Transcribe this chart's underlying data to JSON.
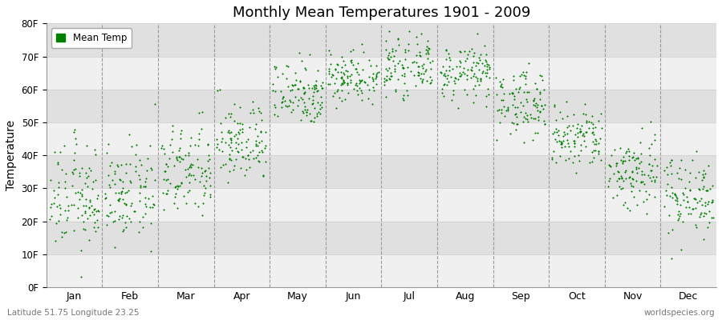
{
  "title": "Monthly Mean Temperatures 1901 - 2009",
  "ylabel": "Temperature",
  "xlabel_bottom_left": "Latitude 51.75 Longitude 23.25",
  "xlabel_bottom_right": "worldspecies.org",
  "legend_label": "Mean Temp",
  "dot_color": "#008000",
  "background_color": "#ffffff",
  "plot_bg_color": "#ffffff",
  "band_color_light": "#f0f0f0",
  "band_color_dark": "#e0e0e0",
  "ytick_labels": [
    "0F",
    "10F",
    "20F",
    "30F",
    "40F",
    "50F",
    "60F",
    "70F",
    "80F"
  ],
  "ytick_values": [
    0,
    10,
    20,
    30,
    40,
    50,
    60,
    70,
    80
  ],
  "months": [
    "Jan",
    "Feb",
    "Mar",
    "Apr",
    "May",
    "Jun",
    "Jul",
    "Aug",
    "Sep",
    "Oct",
    "Nov",
    "Dec"
  ],
  "ylim": [
    0,
    80
  ],
  "num_years": 109,
  "monthly_mean_F": [
    27,
    28,
    35,
    44,
    59,
    64,
    67,
    65,
    56,
    45,
    35,
    28
  ],
  "monthly_std_F": [
    8,
    7,
    7,
    6,
    5,
    4,
    4,
    4,
    5,
    5,
    6,
    6
  ]
}
